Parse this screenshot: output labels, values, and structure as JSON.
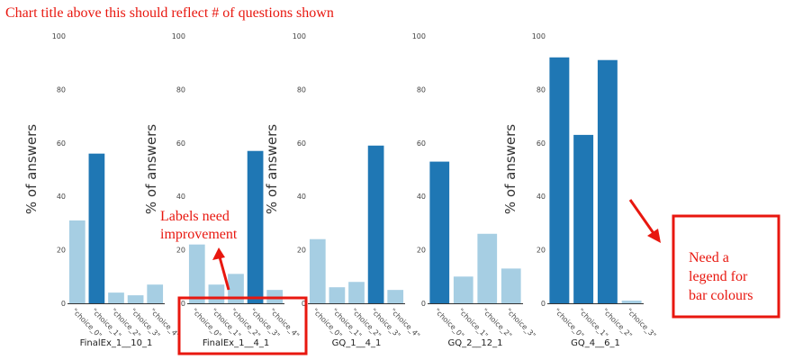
{
  "header_note": "Chart title above this should reflect # of questions shown",
  "annotations": {
    "labels_note": [
      "Labels need",
      "improvement"
    ],
    "legend_note": [
      "Need a",
      "legend for",
      "bar colours"
    ]
  },
  "colors": {
    "highlight": "#1f77b4",
    "normal": "#a6cee3",
    "annotation": "#e8170f",
    "axis": "#333333"
  },
  "chart_data": [
    {
      "type": "bar",
      "title": "",
      "xlabel": "FinalEx_1__10_1",
      "ylabel": "% of answers",
      "ylim": [
        0,
        100
      ],
      "yticks": [
        0,
        20,
        40,
        60,
        80,
        100
      ],
      "categories": [
        "\"choice_0\"",
        "\"choice_1\"",
        "\"choice_2\"",
        "\"choice_3\"",
        "\"choice_4\""
      ],
      "values": [
        31,
        56,
        4,
        3,
        7
      ],
      "highlighted": [
        false,
        true,
        false,
        false,
        false
      ],
      "grid": false
    },
    {
      "type": "bar",
      "title": "",
      "xlabel": "FinalEx_1__4_1",
      "ylabel": "% of answers",
      "ylim": [
        0,
        100
      ],
      "yticks": [
        0,
        20,
        40,
        60,
        80,
        100
      ],
      "categories": [
        "\"choice_0\"",
        "\"choice_1\"",
        "\"choice_2\"",
        "\"choice_3\"",
        "\"choice_4\""
      ],
      "values": [
        22,
        7,
        11,
        57,
        5
      ],
      "highlighted": [
        false,
        false,
        false,
        true,
        false
      ],
      "grid": false
    },
    {
      "type": "bar",
      "title": "",
      "xlabel": "GQ_1__4_1",
      "ylabel": "% of answers",
      "ylim": [
        0,
        100
      ],
      "yticks": [
        0,
        20,
        40,
        60,
        80,
        100
      ],
      "categories": [
        "\"choice_0\"",
        "\"choice_1\"",
        "\"choice_2\"",
        "\"choice_3\"",
        "\"choice_4\""
      ],
      "values": [
        24,
        6,
        8,
        59,
        5
      ],
      "highlighted": [
        false,
        false,
        false,
        true,
        false
      ],
      "grid": false
    },
    {
      "type": "bar",
      "title": "",
      "xlabel": "GQ_2__12_1",
      "ylabel": "% of answers",
      "ylim": [
        0,
        100
      ],
      "yticks": [
        0,
        20,
        40,
        60,
        80,
        100
      ],
      "categories": [
        "\"choice_0\"",
        "\"choice_1\"",
        "\"choice_2\"",
        "\"choice_3\""
      ],
      "values": [
        53,
        10,
        26,
        13
      ],
      "highlighted": [
        true,
        false,
        false,
        false
      ],
      "grid": false
    },
    {
      "type": "bar",
      "title": "",
      "xlabel": "GQ_4__6_1",
      "ylabel": "",
      "ylim": [
        0,
        100
      ],
      "yticks": [
        0,
        20,
        40,
        60,
        80,
        100
      ],
      "categories": [
        "\"choice_0\"",
        "\"choice_1\"",
        "\"choice_2\"",
        "\"choice_3\""
      ],
      "values": [
        92,
        63,
        91,
        1
      ],
      "highlighted": [
        true,
        true,
        true,
        false
      ],
      "grid": false
    }
  ]
}
